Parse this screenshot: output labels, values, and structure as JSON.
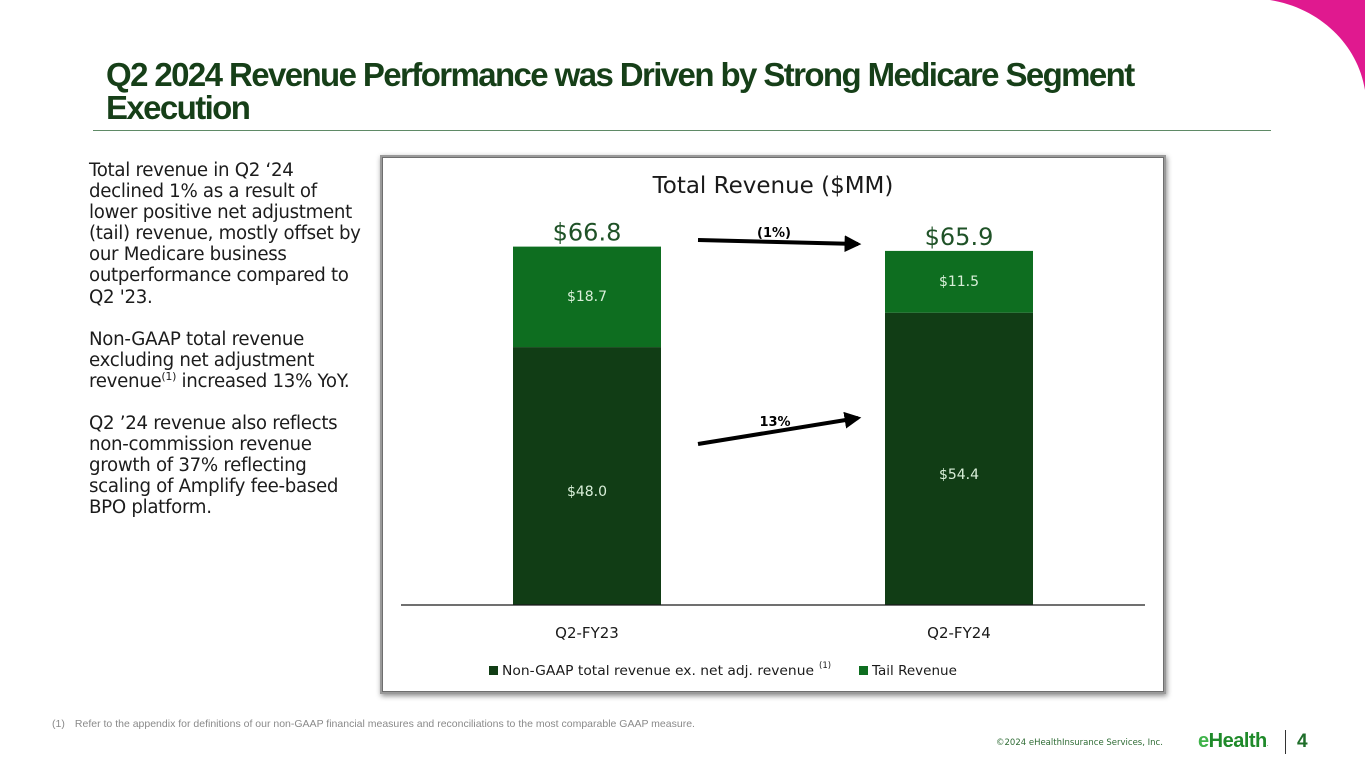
{
  "slide": {
    "title": "Q2 2024 Revenue Performance was Driven by Strong Medicare Segment Execution",
    "accent_color": "#e0198f",
    "title_color": "#163f18"
  },
  "body": {
    "paragraph_1": "Total revenue in Q2 ‘24 declined 1% as a result of lower positive net adjustment (tail) revenue, mostly offset by our Medicare business outperformance compared to Q2 '23.",
    "paragraph_2_before": "Non-GAAP total revenue excluding net adjustment revenue",
    "paragraph_2_sup": "(1)",
    "paragraph_2_after": " increased 13% YoY.",
    "paragraph_3": "Q2 ’24 revenue also reflects non-commission revenue growth of 37% reflecting scaling of Amplify fee-based BPO platform."
  },
  "chart_data": {
    "type": "bar",
    "stacked": true,
    "title": "Total Revenue ($MM)",
    "xlabel": "",
    "ylabel": "",
    "categories": [
      "Q2-FY23",
      "Q2-FY24"
    ],
    "series": [
      {
        "name": "Non-GAAP total revenue ex. net adj. revenue",
        "name_sup": "(1)",
        "values": [
          48.0,
          54.4
        ],
        "labels": [
          "$48.0",
          "$54.4"
        ],
        "color": "#113d15"
      },
      {
        "name": "Tail Revenue",
        "values": [
          18.7,
          11.5
        ],
        "labels": [
          "$18.7",
          "$11.5"
        ],
        "color": "#0e6e20"
      }
    ],
    "totals": [
      66.8,
      65.9
    ],
    "total_labels": [
      "$66.8",
      "$65.9"
    ],
    "ylim": [
      0,
      67
    ],
    "grid": false,
    "legend": "bottom",
    "annotations": [
      {
        "text": "(1%)",
        "type": "arrow",
        "description": "Total revenue change"
      },
      {
        "text": "13%",
        "type": "arrow",
        "description": "Non-GAAP revenue change"
      }
    ],
    "total_label_color": "#1f5227",
    "segment_label_color": "#d9efd9"
  },
  "footer": {
    "footnote_marker": "(1)",
    "footnote_text": "Refer to the appendix for definitions of our non-GAAP financial measures and reconciliations to the most comparable GAAP measure.",
    "copyright": "©2024 eHealthInsurance Services, Inc.",
    "logo_e": "e",
    "logo_rest": "Health",
    "logo_dot": ".",
    "page_number": "4"
  }
}
